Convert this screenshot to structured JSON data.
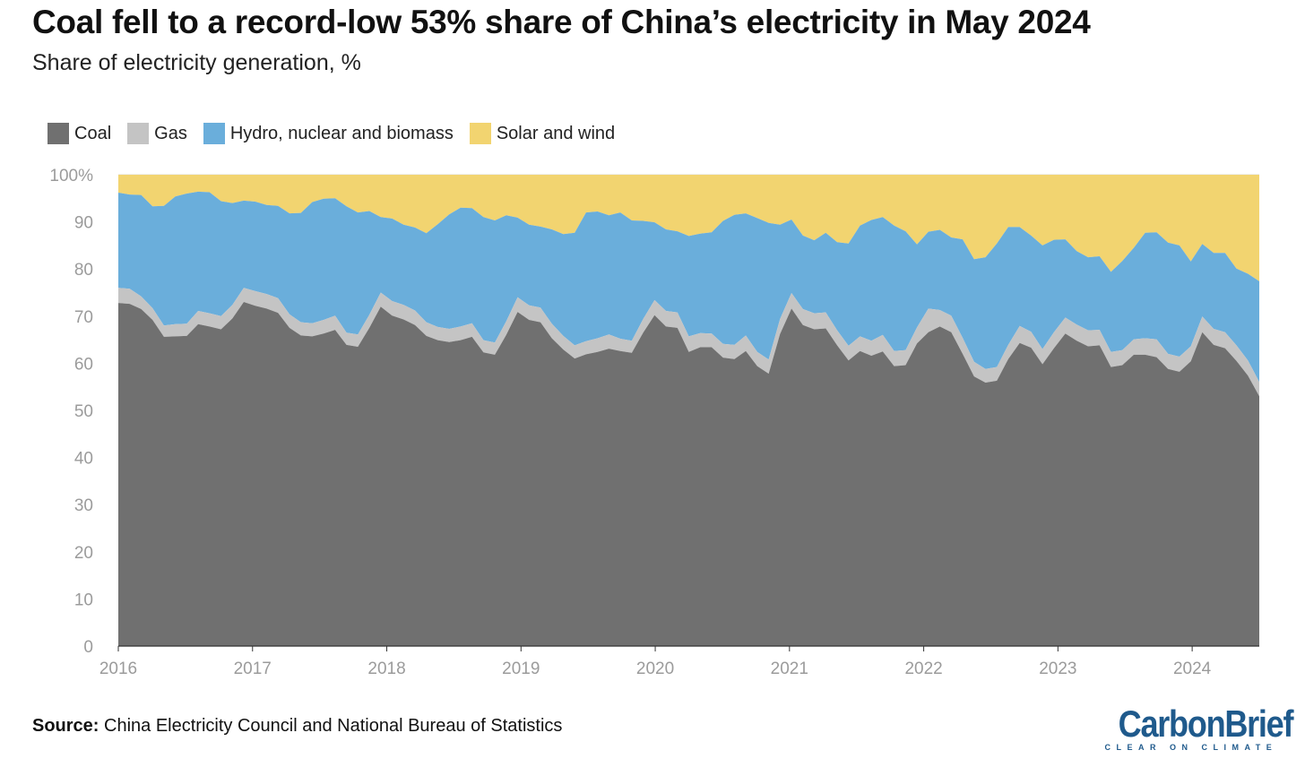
{
  "title": "Coal fell to a record-low 53% share of China’s electricity in May 2024",
  "subtitle": "Share of electricity generation, %",
  "source_label": "Source:",
  "source_text": "China Electricity Council and National Bureau of Statistics",
  "logo": {
    "name": "CarbonBrief",
    "tagline": "CLEAR ON CLIMATE"
  },
  "colors": {
    "coal": "#707070",
    "gas": "#c4c4c4",
    "hydro": "#6aaedb",
    "solar": "#f2d470",
    "grid": "#dcdcdc",
    "axis_text": "#9b9b9b",
    "logo": "#1f5a8c"
  },
  "chart_data": {
    "type": "area",
    "stacked": true,
    "title": "Coal fell to a record-low 53% share of China’s electricity in May 2024",
    "ylabel": "Share of electricity generation, %",
    "ylim": [
      0,
      100
    ],
    "yticks": [
      0,
      10,
      20,
      30,
      40,
      50,
      60,
      70,
      80,
      90,
      100
    ],
    "ytick_labels": [
      "0",
      "10",
      "20",
      "30",
      "40",
      "50",
      "60",
      "70",
      "80",
      "90",
      "100%"
    ],
    "xlim": [
      2016,
      2024.5
    ],
    "xticks": [
      2016,
      2017,
      2018,
      2019,
      2020,
      2021,
      2022,
      2023,
      2024
    ],
    "xtick_labels": [
      "2016",
      "2017",
      "2018",
      "2019",
      "2020",
      "2021",
      "2022",
      "2023",
      "2024"
    ],
    "legend": [
      {
        "key": "coal",
        "label": "Coal"
      },
      {
        "key": "gas",
        "label": "Gas"
      },
      {
        "key": "hydro",
        "label": "Hydro, nuclear and biomass"
      },
      {
        "key": "solar",
        "label": "Solar and wind"
      }
    ],
    "first_month": "2016-01",
    "coal": [
      72.8,
      72.6,
      71.5,
      69.2,
      65.6,
      65.7,
      65.8,
      68.3,
      67.8,
      67.2,
      69.5,
      73.0,
      72.2,
      71.6,
      70.7,
      67.5,
      65.9,
      65.7,
      66.3,
      67.1,
      63.9,
      63.5,
      67.5,
      72.0,
      70.1,
      69.3,
      68.1,
      65.8,
      64.9,
      64.5,
      64.9,
      65.6,
      62.3,
      61.8,
      66.0,
      70.9,
      69.2,
      68.7,
      65.3,
      62.9,
      61.0,
      61.9,
      62.4,
      63.1,
      62.6,
      62.2,
      66.5,
      70.2,
      67.8,
      67.5,
      62.4,
      63.4,
      63.4,
      61.2,
      60.9,
      62.6,
      59.4,
      57.8,
      66.2,
      71.6,
      68.1,
      67.2,
      67.4,
      63.8,
      60.6,
      62.6,
      61.6,
      62.5,
      59.4,
      59.6,
      64.2,
      66.6,
      67.8,
      66.6,
      62.0,
      57.2,
      55.9,
      56.3,
      60.9,
      64.3,
      63.3,
      59.8,
      63.2,
      66.3,
      64.8,
      63.6,
      63.8,
      59.2,
      59.6,
      61.8,
      61.8,
      61.3,
      58.8,
      58.2,
      60.4,
      66.6,
      63.9,
      63.2,
      60.5,
      57.4,
      53.0
    ],
    "gas": [
      3.2,
      3.2,
      2.7,
      2.5,
      2.4,
      2.6,
      2.6,
      2.8,
      2.8,
      2.8,
      2.9,
      3.0,
      3.1,
      3.1,
      3.1,
      2.9,
      2.8,
      2.8,
      2.9,
      3.0,
      2.6,
      2.6,
      2.8,
      3.0,
      3.1,
      3.1,
      3.1,
      2.9,
      2.8,
      2.8,
      2.9,
      2.9,
      2.6,
      2.6,
      2.9,
      3.1,
      3.1,
      3.1,
      3.1,
      2.9,
      2.8,
      2.8,
      2.9,
      3.0,
      2.6,
      2.6,
      2.9,
      3.2,
      3.3,
      3.3,
      3.3,
      3.0,
      2.9,
      2.9,
      3.0,
      3.3,
      3.0,
      3.0,
      3.2,
      3.3,
      3.4,
      3.4,
      3.4,
      3.2,
      3.1,
      3.1,
      3.2,
      3.5,
      3.2,
      3.2,
      3.4,
      5.0,
      3.5,
      3.5,
      3.4,
      3.1,
      2.9,
      2.9,
      3.0,
      3.6,
      3.4,
      3.2,
      3.4,
      3.4,
      3.4,
      3.4,
      3.3,
      3.2,
      3.2,
      3.3,
      3.5,
      3.8,
      3.2,
      3.2,
      3.2,
      3.3,
      3.4,
      3.4,
      3.3,
      3.2,
      3.0
    ],
    "hydro": [
      20.2,
      20.0,
      21.5,
      21.6,
      25.4,
      27.1,
      27.6,
      25.3,
      25.7,
      24.4,
      21.6,
      18.5,
      19.0,
      18.9,
      19.6,
      21.4,
      23.2,
      25.7,
      25.7,
      24.9,
      26.8,
      25.9,
      22.0,
      16.0,
      17.5,
      17.0,
      17.6,
      18.9,
      21.8,
      24.3,
      25.2,
      24.4,
      26.1,
      25.9,
      22.5,
      16.9,
      17.1,
      17.2,
      20.0,
      21.6,
      23.9,
      27.3,
      26.9,
      25.3,
      26.8,
      25.5,
      20.8,
      16.5,
      17.3,
      17.2,
      21.3,
      21.1,
      21.5,
      26.1,
      27.6,
      25.9,
      28.4,
      29.0,
      20.0,
      15.6,
      15.6,
      15.5,
      16.9,
      18.7,
      21.7,
      23.5,
      25.6,
      25.0,
      26.6,
      25.2,
      17.6,
      16.3,
      17.0,
      16.6,
      20.9,
      21.8,
      23.7,
      26.2,
      25.0,
      21.0,
      20.4,
      22.0,
      19.6,
      16.6,
      15.6,
      15.5,
      15.6,
      17.0,
      18.9,
      19.4,
      22.4,
      22.7,
      23.6,
      23.6,
      18.0,
      15.4,
      16.1,
      16.8,
      16.3,
      18.4,
      21.4
    ]
  }
}
